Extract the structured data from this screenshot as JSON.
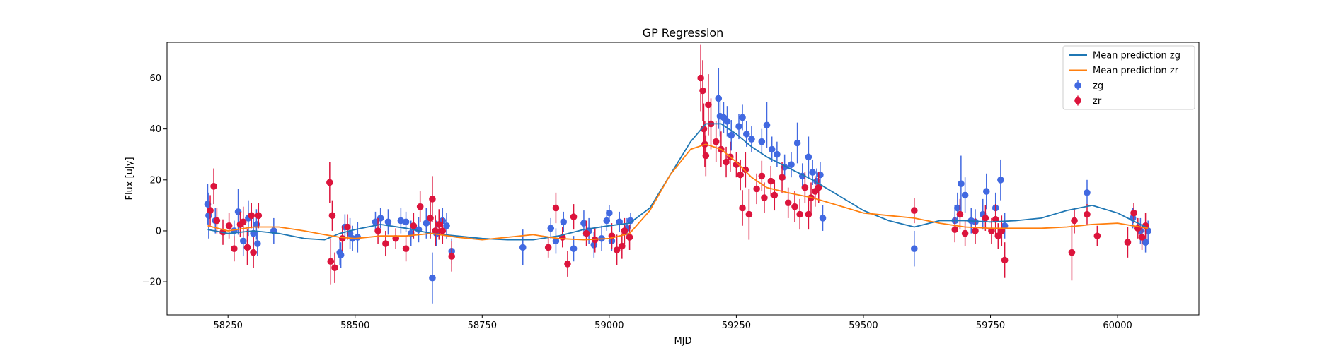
{
  "chart_data": {
    "type": "scatter",
    "title": "GP Regression",
    "xlabel": "MJD",
    "ylabel": "Flux [uJy]",
    "xlim": [
      58130,
      60160
    ],
    "ylim": [
      -33,
      74
    ],
    "xticks": [
      58250,
      58500,
      58750,
      59000,
      59250,
      59500,
      59750,
      60000
    ],
    "yticks": [
      -20,
      0,
      20,
      40,
      60
    ],
    "grid": false,
    "legend_position": "top-right",
    "colors": {
      "mean_zg": "#1f77b4",
      "mean_zr": "#ff7f0e",
      "zg": "#4169e1",
      "zr": "#dc143c"
    },
    "legend": [
      {
        "label": "Mean prediction zg",
        "kind": "line",
        "color": "#1f77b4"
      },
      {
        "label": "Mean prediction zr",
        "kind": "line",
        "color": "#ff7f0e"
      },
      {
        "label": "zg",
        "kind": "errorbar",
        "color": "#4169e1"
      },
      {
        "label": "zr",
        "kind": "errorbar",
        "color": "#dc143c"
      }
    ],
    "lines": [
      {
        "name": "Mean prediction zg",
        "x": [
          58210,
          58250,
          58300,
          58350,
          58400,
          58440,
          58470,
          58500,
          58550,
          58600,
          58650,
          58700,
          58750,
          58800,
          58850,
          58900,
          58950,
          59000,
          59040,
          59080,
          59120,
          59160,
          59190,
          59220,
          59250,
          59280,
          59310,
          59350,
          59400,
          59450,
          59500,
          59550,
          59600,
          59650,
          59700,
          59750,
          59800,
          59850,
          59900,
          59950,
          60000,
          60060
        ],
        "y": [
          0.5,
          -1,
          0,
          -1,
          -3,
          -3.5,
          -1,
          0.5,
          2.5,
          1,
          -1,
          -2,
          -3,
          -3.5,
          -3.5,
          -2,
          0.5,
          2,
          3,
          9,
          22,
          35,
          42,
          42,
          38,
          33,
          29,
          25,
          20,
          14,
          8,
          4,
          1.5,
          4,
          4,
          3.5,
          4,
          5,
          8,
          10,
          7,
          1
        ]
      },
      {
        "name": "Mean prediction zr",
        "x": [
          58210,
          58250,
          58300,
          58350,
          58400,
          58440,
          58470,
          58500,
          58550,
          58600,
          58650,
          58700,
          58750,
          58800,
          58850,
          58900,
          58950,
          59000,
          59040,
          59080,
          59120,
          59160,
          59190,
          59220,
          59250,
          59280,
          59310,
          59350,
          59400,
          59450,
          59500,
          59550,
          59600,
          59650,
          59700,
          59750,
          59800,
          59850,
          59900,
          59950,
          60000,
          60060
        ],
        "y": [
          2,
          0,
          1.5,
          1.5,
          0,
          -1.5,
          -2.5,
          -3,
          -2,
          -2,
          -1,
          -2.5,
          -3.5,
          -2.5,
          -1.5,
          -3,
          -3.5,
          -3,
          -1,
          8,
          22,
          32,
          34,
          32,
          27,
          21,
          17,
          15,
          13,
          10,
          7,
          6,
          5,
          3,
          1.5,
          1,
          1,
          1,
          1.5,
          2.5,
          3,
          1
        ]
      }
    ],
    "series": [
      {
        "name": "zg",
        "points": [
          [
            58210,
            10.5,
            8
          ],
          [
            58212,
            6,
            9
          ],
          [
            58225,
            4,
            5
          ],
          [
            58262,
            0,
            4
          ],
          [
            58270,
            7.5,
            9
          ],
          [
            58280,
            -4,
            6
          ],
          [
            58290,
            5,
            7
          ],
          [
            58300,
            -1,
            6
          ],
          [
            58306,
            2.5,
            6
          ],
          [
            58308,
            -5,
            5
          ],
          [
            58340,
            0,
            5
          ],
          [
            58470,
            -8.5,
            5
          ],
          [
            58472,
            -9.5,
            5
          ],
          [
            58480,
            1.5,
            5
          ],
          [
            58490,
            -1,
            6
          ],
          [
            58495,
            -3,
            5
          ],
          [
            58505,
            -2.5,
            6
          ],
          [
            58540,
            3.5,
            4
          ],
          [
            58550,
            5,
            4
          ],
          [
            58565,
            3.5,
            5
          ],
          [
            58590,
            4,
            5
          ],
          [
            58600,
            3.5,
            4
          ],
          [
            58610,
            -1,
            5
          ],
          [
            58625,
            0.5,
            5
          ],
          [
            58640,
            3,
            6
          ],
          [
            58652,
            -18.5,
            10
          ],
          [
            58660,
            -1,
            5
          ],
          [
            58672,
            4,
            5
          ],
          [
            58680,
            2,
            5
          ],
          [
            58690,
            -8,
            5
          ],
          [
            58830,
            -6.5,
            7
          ],
          [
            58885,
            1,
            4
          ],
          [
            58895,
            -4,
            5
          ],
          [
            58910,
            3.5,
            4
          ],
          [
            58930,
            -7,
            5
          ],
          [
            58950,
            3,
            5
          ],
          [
            58960,
            0,
            5
          ],
          [
            58970,
            -5.5,
            5
          ],
          [
            58985,
            -3,
            5
          ],
          [
            58995,
            4,
            4
          ],
          [
            59000,
            7,
            3
          ],
          [
            59005,
            -4,
            4
          ],
          [
            59020,
            3.5,
            4
          ],
          [
            59035,
            1,
            4
          ],
          [
            59042,
            4,
            3
          ],
          [
            59215,
            52,
            12
          ],
          [
            59218,
            45,
            8
          ],
          [
            59225,
            44.5,
            6
          ],
          [
            59232,
            43,
            6
          ],
          [
            59240,
            37.5,
            6
          ],
          [
            59255,
            41,
            5
          ],
          [
            59262,
            44.5,
            5
          ],
          [
            59270,
            38,
            5
          ],
          [
            59280,
            36,
            5
          ],
          [
            59300,
            35,
            5
          ],
          [
            59310,
            41.5,
            9
          ],
          [
            59320,
            32,
            5
          ],
          [
            59330,
            30,
            5
          ],
          [
            59345,
            25,
            5
          ],
          [
            59358,
            26,
            5
          ],
          [
            59370,
            34.5,
            8
          ],
          [
            59380,
            21.5,
            5
          ],
          [
            59392,
            29,
            8
          ],
          [
            59400,
            23,
            5
          ],
          [
            59408,
            19.5,
            5
          ],
          [
            59415,
            22,
            5
          ],
          [
            59420,
            5,
            5
          ],
          [
            59600,
            -7,
            7
          ],
          [
            59680,
            4,
            6
          ],
          [
            59685,
            9,
            6
          ],
          [
            59692,
            18.5,
            11
          ],
          [
            59700,
            14,
            7
          ],
          [
            59712,
            4,
            5
          ],
          [
            59720,
            3.5,
            5
          ],
          [
            59735,
            6.5,
            6
          ],
          [
            59742,
            15.5,
            7
          ],
          [
            59760,
            9,
            6
          ],
          [
            59770,
            20,
            8
          ],
          [
            59778,
            2,
            5
          ],
          [
            59940,
            15,
            5
          ],
          [
            60030,
            5,
            4
          ],
          [
            60045,
            0,
            5
          ],
          [
            60055,
            -4.5,
            4
          ],
          [
            60060,
            0,
            4
          ]
        ]
      },
      {
        "name": "zr",
        "points": [
          [
            58215,
            8,
            6
          ],
          [
            58222,
            17.5,
            7
          ],
          [
            58228,
            4,
            5
          ],
          [
            58240,
            -0.5,
            5
          ],
          [
            58252,
            2,
            5
          ],
          [
            58262,
            -7,
            5
          ],
          [
            58274,
            2.5,
            5
          ],
          [
            58280,
            3.5,
            6
          ],
          [
            58288,
            -6.5,
            7
          ],
          [
            58296,
            6,
            5
          ],
          [
            58300,
            -8.5,
            6
          ],
          [
            58310,
            6,
            5
          ],
          [
            58450,
            19,
            8
          ],
          [
            58452,
            -12,
            9
          ],
          [
            58455,
            6,
            6
          ],
          [
            58460,
            -14.5,
            6
          ],
          [
            58475,
            -3,
            5
          ],
          [
            58485,
            1.5,
            5
          ],
          [
            58545,
            0,
            5
          ],
          [
            58560,
            -5,
            5
          ],
          [
            58580,
            -3,
            4
          ],
          [
            58600,
            -7,
            5
          ],
          [
            58615,
            2,
            5
          ],
          [
            58628,
            9.5,
            6
          ],
          [
            58648,
            5,
            8
          ],
          [
            58652,
            12.5,
            9
          ],
          [
            58658,
            0,
            6
          ],
          [
            58665,
            2.5,
            6
          ],
          [
            58672,
            0,
            5
          ],
          [
            58690,
            -10,
            6
          ],
          [
            58880,
            -6.5,
            4
          ],
          [
            58895,
            9,
            6
          ],
          [
            58908,
            -2.5,
            4
          ],
          [
            58918,
            -13,
            5
          ],
          [
            58930,
            5.5,
            5
          ],
          [
            58955,
            -1,
            5
          ],
          [
            58972,
            -3.5,
            5
          ],
          [
            59005,
            -2,
            5
          ],
          [
            59015,
            -7.5,
            6
          ],
          [
            59025,
            -6,
            5
          ],
          [
            59030,
            0,
            5
          ],
          [
            59040,
            -2.5,
            5
          ],
          [
            59180,
            60,
            13
          ],
          [
            59184,
            55,
            12
          ],
          [
            59186,
            40,
            10
          ],
          [
            59188,
            34,
            9
          ],
          [
            59190,
            29.5,
            8
          ],
          [
            59195,
            49.5,
            12
          ],
          [
            59200,
            42,
            10
          ],
          [
            59210,
            35,
            8
          ],
          [
            59220,
            32,
            7
          ],
          [
            59230,
            27,
            6
          ],
          [
            59238,
            29,
            6
          ],
          [
            59250,
            26,
            5
          ],
          [
            59258,
            22,
            6
          ],
          [
            59262,
            9,
            7
          ],
          [
            59268,
            24,
            7
          ],
          [
            59275,
            6.5,
            10
          ],
          [
            59290,
            16.5,
            6
          ],
          [
            59300,
            21.5,
            6
          ],
          [
            59305,
            13,
            6
          ],
          [
            59318,
            19.5,
            6
          ],
          [
            59325,
            14,
            6
          ],
          [
            59340,
            21,
            6
          ],
          [
            59352,
            11,
            6
          ],
          [
            59365,
            9.5,
            6
          ],
          [
            59375,
            6.5,
            6
          ],
          [
            59385,
            17,
            6
          ],
          [
            59392,
            6.5,
            6
          ],
          [
            59397,
            13,
            6
          ],
          [
            59405,
            15.5,
            6
          ],
          [
            59412,
            17,
            6
          ],
          [
            59600,
            8,
            5
          ],
          [
            59680,
            0.5,
            5
          ],
          [
            59690,
            6.5,
            6
          ],
          [
            59700,
            -1,
            5
          ],
          [
            59720,
            0,
            5
          ],
          [
            59740,
            5,
            5
          ],
          [
            59752,
            0,
            5
          ],
          [
            59760,
            4.5,
            6
          ],
          [
            59765,
            -2,
            5
          ],
          [
            59772,
            0,
            6
          ],
          [
            59778,
            -11.5,
            7
          ],
          [
            59910,
            -8.5,
            11
          ],
          [
            59915,
            4,
            5
          ],
          [
            59940,
            6.5,
            4
          ],
          [
            59960,
            -2,
            4
          ],
          [
            60020,
            -4.5,
            6
          ],
          [
            60032,
            7,
            4
          ],
          [
            60040,
            1,
            4
          ],
          [
            60048,
            -2.5,
            5
          ],
          [
            60055,
            2,
            5
          ]
        ]
      }
    ]
  }
}
